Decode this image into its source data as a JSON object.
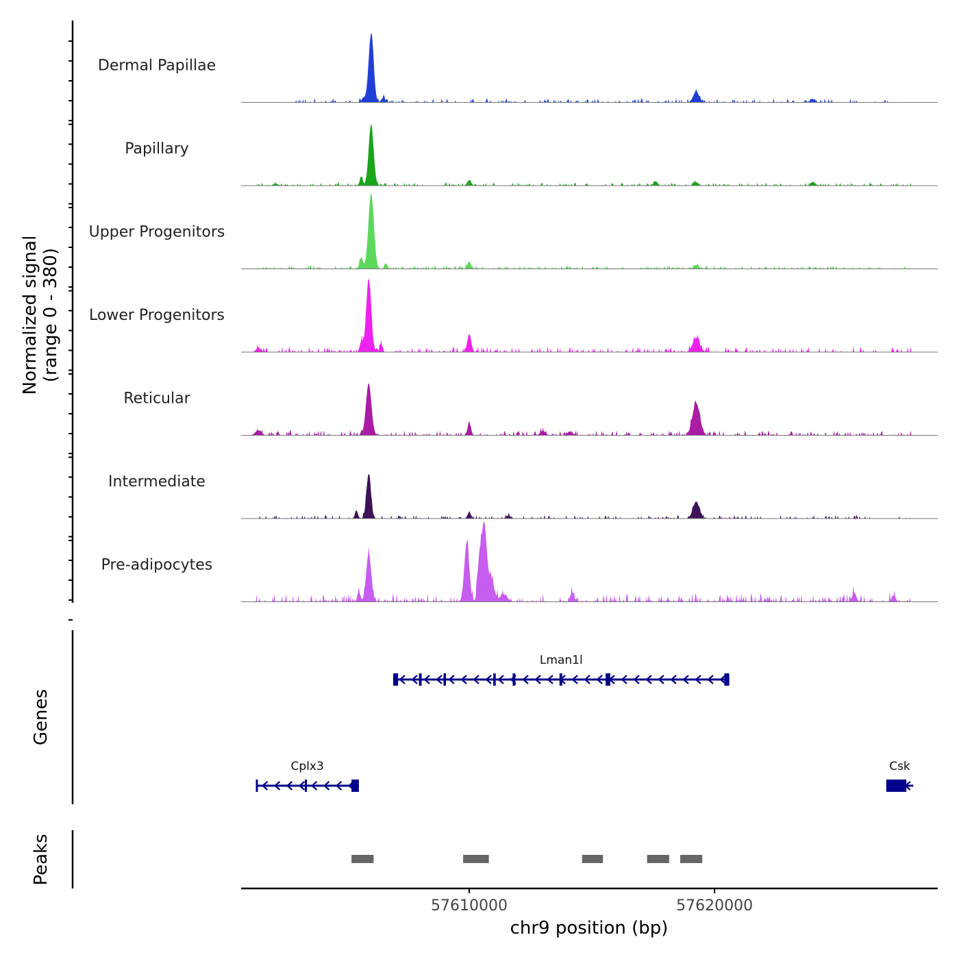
{
  "chart_data": {
    "type": "area",
    "title": "",
    "ylabel_line1": "Normalized signal",
    "ylabel_line2": "(range 0 - 380)",
    "xlabel": "chr9 position (bp)",
    "xlim": [
      57600700,
      57629100
    ],
    "ylim": [
      0,
      380
    ],
    "x_ticks": [
      {
        "value": 57610000,
        "label": "57610000"
      },
      {
        "value": 57620000,
        "label": "57620000"
      }
    ],
    "coverage_tracks": [
      {
        "name": "Dermal Papillae",
        "color": "#1f3fd6",
        "peaks": [
          [
            57606000,
            380,
            100
          ],
          [
            57619250,
            60,
            120
          ],
          [
            57605700,
            25,
            80
          ],
          [
            57606500,
            25,
            80
          ],
          [
            57624000,
            18,
            100
          ]
        ],
        "noise": 10,
        "noise_range": [
          57602700,
          57627200
        ]
      },
      {
        "name": "Papillary",
        "color": "#1aa51a",
        "peaks": [
          [
            57606000,
            340,
            100
          ],
          [
            57605600,
            50,
            60
          ],
          [
            57610000,
            30,
            80
          ],
          [
            57619250,
            18,
            100
          ],
          [
            57617600,
            25,
            80
          ],
          [
            57602100,
            10,
            100
          ],
          [
            57624000,
            20,
            100
          ]
        ],
        "noise": 8,
        "noise_range": [
          57601300,
          57628000
        ]
      },
      {
        "name": "Upper Progenitors",
        "color": "#5cd85c",
        "peaks": [
          [
            57606000,
            420,
            110
          ],
          [
            57605600,
            60,
            70
          ],
          [
            57606600,
            30,
            60
          ],
          [
            57610000,
            40,
            70
          ],
          [
            57619250,
            22,
            100
          ]
        ],
        "noise": 9,
        "noise_range": [
          57601300,
          57628000
        ]
      },
      {
        "name": "Lower Progenitors",
        "color": "#ee22ee",
        "peaks": [
          [
            57605900,
            410,
            100
          ],
          [
            57605600,
            60,
            60
          ],
          [
            57606400,
            40,
            60
          ],
          [
            57610000,
            100,
            80
          ],
          [
            57619250,
            80,
            140
          ],
          [
            57601400,
            22,
            100
          ]
        ],
        "noise": 14,
        "noise_range": [
          57601300,
          57628000
        ]
      },
      {
        "name": "Reticular",
        "color": "#aa1ca4",
        "peaks": [
          [
            57605900,
            290,
            110
          ],
          [
            57610000,
            65,
            70
          ],
          [
            57619250,
            180,
            150
          ],
          [
            57601400,
            28,
            120
          ],
          [
            57613000,
            25,
            100
          ],
          [
            57614100,
            20,
            100
          ]
        ],
        "noise": 13,
        "noise_range": [
          57601300,
          57628000
        ]
      },
      {
        "name": "Intermediate",
        "color": "#3d1258",
        "peaks": [
          [
            57605900,
            250,
            90
          ],
          [
            57605400,
            45,
            60
          ],
          [
            57610000,
            35,
            70
          ],
          [
            57619250,
            95,
            130
          ],
          [
            57611600,
            15,
            100
          ]
        ],
        "noise": 9,
        "noise_range": [
          57601300,
          57628000
        ]
      },
      {
        "name": "Pre-adipocytes",
        "color": "#c65cf0",
        "peaks": [
          [
            57605900,
            270,
            100
          ],
          [
            57605500,
            60,
            60
          ],
          [
            57609900,
            330,
            100
          ],
          [
            57610600,
            440,
            110
          ],
          [
            57610400,
            180,
            70
          ],
          [
            57610900,
            120,
            120
          ],
          [
            57611400,
            40,
            150
          ],
          [
            57614200,
            50,
            80
          ],
          [
            57625700,
            50,
            80
          ],
          [
            57627300,
            35,
            80
          ]
        ],
        "noise": 22,
        "noise_range": [
          57601300,
          57628000
        ]
      }
    ],
    "genes": [
      {
        "name": "Lman1l",
        "row": 0,
        "start": 57606900,
        "end": 57620600,
        "strand": "-",
        "exons": [
          [
            57606900,
            57607100
          ],
          [
            57607950,
            57608060
          ],
          [
            57608950,
            57609050
          ],
          [
            57610980,
            57611080
          ],
          [
            57611770,
            57611880
          ],
          [
            57613680,
            57613790
          ],
          [
            57615560,
            57615750
          ],
          [
            57620400,
            57620600
          ]
        ]
      },
      {
        "name": "Cplx3",
        "row": 1,
        "start": 57601300,
        "end": 57605500,
        "strand": "-",
        "exons": [
          [
            57601300,
            57601350
          ],
          [
            57603300,
            57603340
          ],
          [
            57605200,
            57605500
          ]
        ]
      },
      {
        "name": "Csk",
        "row": 1,
        "start": 57627000,
        "end": 57628100,
        "strand": "-",
        "exons": [
          [
            57627000,
            57627820
          ]
        ]
      }
    ],
    "peaks_track": [
      [
        57605200,
        57606100
      ],
      [
        57609750,
        57610800
      ],
      [
        57614600,
        57615450
      ],
      [
        57617250,
        57618150
      ],
      [
        57618600,
        57619500
      ]
    ],
    "panel_labels": {
      "genes": "Genes",
      "peaks": "Peaks"
    }
  }
}
